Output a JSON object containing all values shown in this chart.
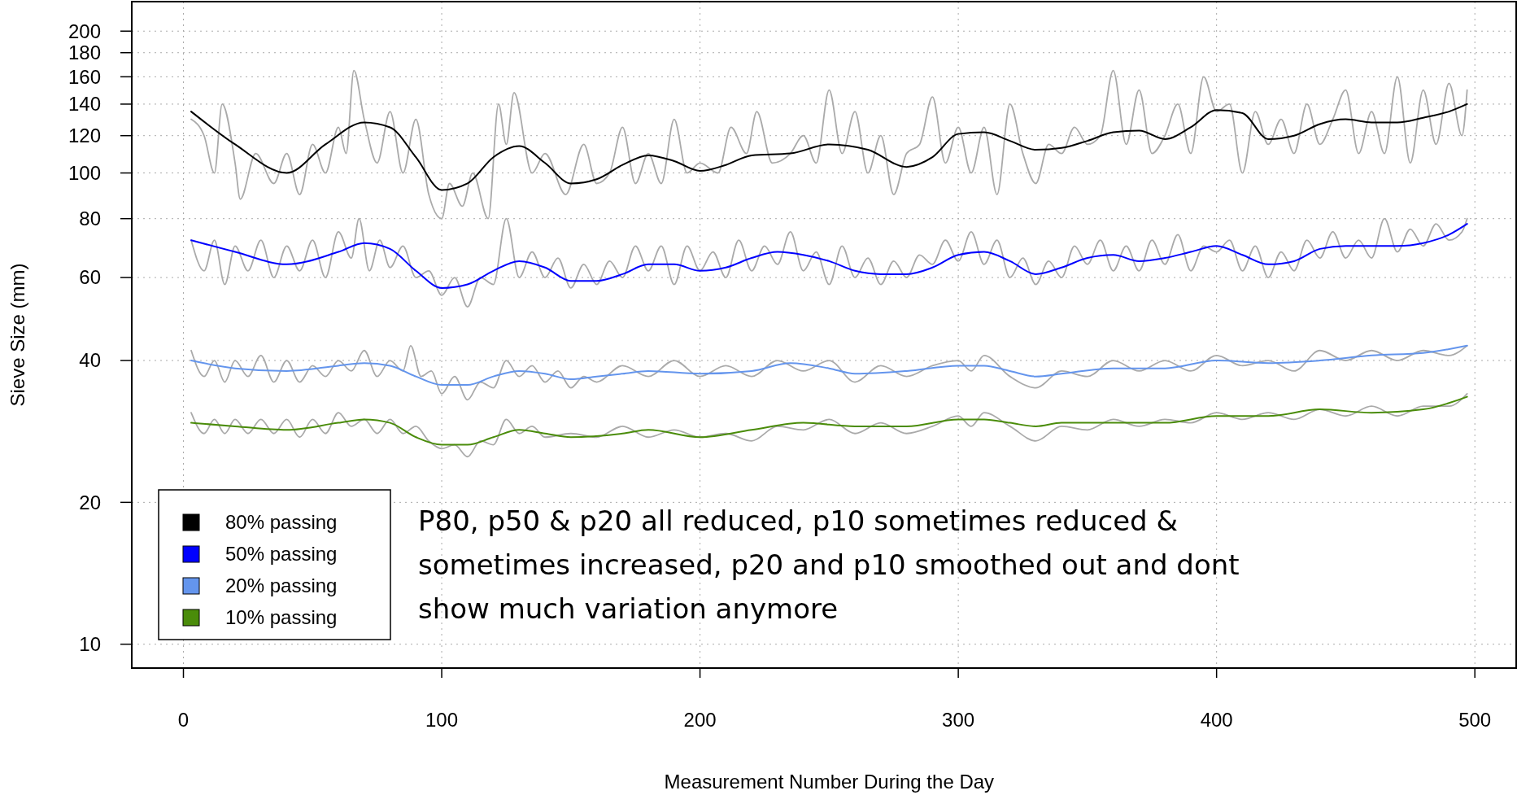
{
  "chart_data": {
    "type": "line",
    "xlabel": "Measurement Number During the Day",
    "ylabel": "Sieve Size (mm)",
    "log": "y",
    "grid": true,
    "legend": "bottom left",
    "marker": "none",
    "line_style": "solid",
    "xlim": [
      -20,
      516
    ],
    "xticks": [
      0,
      100,
      200,
      300,
      400,
      500
    ],
    "ylim": [
      8.9,
      231
    ],
    "yticks": [
      10,
      20,
      40,
      60,
      80,
      100,
      120,
      140,
      160,
      180,
      200
    ],
    "annotations": [
      "P80, p50 & p20 all reduced, p10 sometimes reduced & sometimes increased, p20 and p10 smoothed out and dont show much variation anymore"
    ],
    "series": [
      {
        "color": "#aaaaaa",
        "x": [
          3,
          8,
          12,
          15,
          20,
          22,
          28,
          35,
          40,
          45,
          50,
          55,
          60,
          63,
          66,
          70,
          75,
          80,
          85,
          90,
          95,
          100,
          103,
          108,
          112,
          118,
          122,
          125,
          128,
          135,
          140,
          148,
          155,
          160,
          165,
          170,
          175,
          180,
          185,
          190,
          195,
          200,
          207,
          212,
          218,
          222,
          228,
          235,
          240,
          245,
          250,
          255,
          260,
          265,
          270,
          275,
          280,
          285,
          290,
          295,
          300,
          305,
          310,
          315,
          320,
          325,
          330,
          335,
          340,
          345,
          350,
          355,
          360,
          365,
          370,
          375,
          380,
          385,
          390,
          395,
          400,
          405,
          410,
          415,
          420,
          425,
          430,
          435,
          440,
          445,
          450,
          455,
          460,
          465,
          470,
          475,
          480,
          485,
          490,
          495,
          497
        ],
        "values": [
          130,
          120,
          100,
          140,
          105,
          88,
          110,
          95,
          110,
          90,
          115,
          100,
          125,
          110,
          165,
          130,
          105,
          135,
          100,
          130,
          90,
          80,
          95,
          85,
          100,
          80,
          140,
          115,
          148,
          100,
          110,
          90,
          115,
          95,
          100,
          125,
          95,
          110,
          95,
          130,
          100,
          105,
          100,
          125,
          110,
          135,
          105,
          110,
          120,
          105,
          150,
          110,
          135,
          100,
          120,
          90,
          110,
          115,
          145,
          105,
          125,
          100,
          125,
          90,
          140,
          110,
          95,
          115,
          110,
          125,
          115,
          120,
          165,
          115,
          150,
          110,
          120,
          140,
          110,
          160,
          135,
          140,
          100,
          135,
          115,
          130,
          110,
          140,
          115,
          130,
          150,
          110,
          135,
          110,
          160,
          105,
          150,
          115,
          155,
          120,
          150
        ]
      },
      {
        "color": "#aaaaaa",
        "x": [
          3,
          8,
          12,
          16,
          20,
          25,
          30,
          35,
          40,
          45,
          50,
          55,
          60,
          65,
          68,
          72,
          76,
          80,
          85,
          90,
          95,
          100,
          105,
          110,
          115,
          120,
          125,
          130,
          135,
          140,
          145,
          150,
          155,
          160,
          165,
          170,
          175,
          180,
          185,
          190,
          195,
          200,
          205,
          210,
          215,
          220,
          225,
          230,
          235,
          240,
          245,
          250,
          255,
          260,
          265,
          270,
          275,
          280,
          285,
          290,
          295,
          300,
          305,
          310,
          315,
          320,
          325,
          330,
          335,
          340,
          345,
          350,
          355,
          360,
          365,
          370,
          375,
          380,
          385,
          390,
          395,
          400,
          405,
          410,
          415,
          420,
          425,
          430,
          435,
          440,
          445,
          450,
          455,
          460,
          465,
          470,
          475,
          480,
          485,
          490,
          495,
          497
        ],
        "values": [
          72,
          62,
          72,
          58,
          70,
          62,
          72,
          60,
          70,
          62,
          72,
          60,
          75,
          66,
          80,
          62,
          72,
          63,
          70,
          60,
          62,
          55,
          60,
          52,
          60,
          58,
          80,
          60,
          68,
          60,
          66,
          57,
          64,
          58,
          65,
          60,
          70,
          62,
          70,
          58,
          70,
          62,
          68,
          60,
          72,
          62,
          70,
          64,
          75,
          62,
          68,
          58,
          70,
          60,
          66,
          58,
          65,
          60,
          67,
          64,
          72,
          65,
          75,
          64,
          72,
          60,
          66,
          58,
          65,
          60,
          70,
          64,
          72,
          62,
          70,
          62,
          72,
          64,
          74,
          62,
          70,
          68,
          72,
          62,
          70,
          60,
          68,
          62,
          72,
          66,
          75,
          66,
          72,
          66,
          80,
          68,
          76,
          70,
          78,
          72,
          75,
          80
        ]
      },
      {
        "color": "#aaaaaa",
        "x": [
          3,
          8,
          12,
          16,
          20,
          25,
          30,
          35,
          40,
          45,
          50,
          55,
          60,
          65,
          70,
          75,
          80,
          85,
          88,
          92,
          96,
          100,
          105,
          110,
          115,
          120,
          125,
          130,
          135,
          140,
          145,
          150,
          155,
          160,
          170,
          180,
          190,
          200,
          210,
          220,
          230,
          240,
          250,
          260,
          270,
          280,
          290,
          300,
          305,
          310,
          320,
          330,
          340,
          350,
          360,
          370,
          380,
          390,
          400,
          410,
          420,
          430,
          440,
          450,
          460,
          470,
          480,
          490,
          497
        ],
        "values": [
          42,
          37,
          40,
          36,
          40,
          37,
          41,
          36,
          40,
          36,
          39,
          37,
          40,
          38,
          42,
          37,
          40,
          38,
          43,
          37,
          38,
          34,
          37,
          33,
          36,
          35,
          40,
          37,
          39,
          36,
          38,
          35,
          37,
          36,
          39,
          37,
          40,
          37,
          39,
          37,
          40,
          38,
          40,
          36,
          39,
          37,
          39,
          40,
          38,
          41,
          37,
          35,
          38,
          37,
          40,
          38,
          40,
          38,
          41,
          39,
          40,
          38,
          42,
          40,
          42,
          40,
          42,
          41,
          43
        ]
      },
      {
        "color": "#aaaaaa",
        "x": [
          3,
          8,
          12,
          16,
          20,
          25,
          30,
          35,
          40,
          45,
          50,
          55,
          60,
          65,
          70,
          75,
          80,
          85,
          90,
          95,
          100,
          105,
          110,
          115,
          120,
          125,
          130,
          135,
          140,
          150,
          160,
          170,
          180,
          190,
          200,
          210,
          220,
          230,
          240,
          250,
          260,
          270,
          280,
          290,
          300,
          305,
          310,
          320,
          330,
          340,
          350,
          360,
          370,
          380,
          390,
          400,
          410,
          420,
          430,
          440,
          450,
          460,
          470,
          480,
          490,
          497
        ],
        "values": [
          31,
          28,
          30,
          28,
          30,
          28,
          30,
          28,
          30,
          27.5,
          30,
          28,
          31,
          29,
          30,
          28,
          30,
          28,
          29,
          27,
          26,
          26.5,
          25,
          27,
          26.5,
          30,
          28,
          29,
          27.5,
          28,
          27.5,
          29,
          27.5,
          28.5,
          27.5,
          28,
          27,
          29,
          28.5,
          30,
          28,
          29.5,
          28,
          29,
          30.5,
          29,
          31,
          29,
          27,
          29,
          28.5,
          30,
          29,
          30,
          29.5,
          31,
          30,
          31,
          30,
          31.5,
          30.5,
          32,
          30.5,
          32,
          32,
          34
        ]
      },
      {
        "name": "80% passing",
        "color": "#000000",
        "x": [
          3,
          20,
          40,
          55,
          70,
          80,
          90,
          100,
          110,
          120,
          130,
          140,
          150,
          160,
          170,
          180,
          190,
          200,
          210,
          220,
          235,
          250,
          265,
          280,
          290,
          300,
          310,
          320,
          330,
          340,
          350,
          360,
          370,
          380,
          390,
          400,
          410,
          420,
          430,
          440,
          450,
          460,
          470,
          480,
          490,
          497
        ],
        "values": [
          135,
          115,
          100,
          115,
          128,
          125,
          108,
          92,
          95,
          108,
          114,
          105,
          95,
          97,
          104,
          109,
          106,
          101,
          104,
          109,
          110,
          115,
          112,
          103,
          108,
          121,
          122,
          117,
          112,
          113,
          117,
          122,
          123,
          118,
          125,
          136,
          134,
          118,
          120,
          127,
          130,
          128,
          128,
          131,
          135,
          140
        ]
      },
      {
        "name": "50% passing",
        "color": "#0000ff",
        "x": [
          3,
          20,
          40,
          60,
          70,
          80,
          90,
          100,
          110,
          120,
          130,
          140,
          150,
          160,
          170,
          180,
          190,
          200,
          210,
          220,
          230,
          240,
          250,
          260,
          270,
          280,
          290,
          300,
          310,
          320,
          330,
          340,
          350,
          360,
          370,
          380,
          390,
          400,
          410,
          420,
          430,
          440,
          450,
          460,
          470,
          480,
          490,
          497
        ],
        "values": [
          72,
          68,
          64,
          68,
          71,
          69,
          62,
          57,
          58,
          62,
          65,
          63,
          59,
          59,
          61,
          64,
          64,
          62,
          63,
          66,
          68,
          67,
          65,
          62,
          61,
          61,
          63,
          67,
          68,
          65,
          61,
          63,
          66,
          67,
          65,
          66,
          68,
          70,
          67,
          64,
          65,
          69,
          70,
          70,
          70,
          71,
          74,
          78
        ]
      },
      {
        "name": "20% passing",
        "color": "#6495ed",
        "x": [
          3,
          20,
          40,
          60,
          70,
          80,
          90,
          100,
          110,
          120,
          130,
          140,
          150,
          160,
          170,
          180,
          200,
          220,
          235,
          250,
          260,
          280,
          300,
          310,
          320,
          330,
          340,
          360,
          380,
          400,
          420,
          440,
          460,
          480,
          497
        ],
        "values": [
          40,
          38.5,
          38,
          39,
          39.5,
          39,
          37,
          35.5,
          35.5,
          37,
          38,
          37.5,
          36.5,
          37,
          37.5,
          38,
          37.5,
          38,
          39.5,
          38.5,
          37.5,
          38,
          39,
          39,
          38,
          37,
          37.5,
          38.5,
          38.5,
          40,
          39.5,
          40,
          41,
          41.5,
          43
        ]
      },
      {
        "name": "10% passing",
        "color": "#4a8c0a",
        "x": [
          3,
          20,
          40,
          60,
          70,
          80,
          90,
          100,
          110,
          120,
          130,
          140,
          150,
          170,
          180,
          200,
          220,
          240,
          260,
          280,
          300,
          310,
          320,
          330,
          340,
          360,
          380,
          400,
          420,
          440,
          460,
          480,
          497
        ],
        "values": [
          29.5,
          29,
          28.5,
          29.5,
          30,
          29.5,
          27.5,
          26.5,
          26.5,
          27.5,
          28.5,
          28,
          27.5,
          28,
          28.5,
          27.5,
          28.5,
          29.5,
          29,
          29,
          30,
          30,
          29.5,
          29,
          29.5,
          29.5,
          29.5,
          30.5,
          30.5,
          31.5,
          31,
          31.5,
          33.5
        ]
      }
    ]
  }
}
